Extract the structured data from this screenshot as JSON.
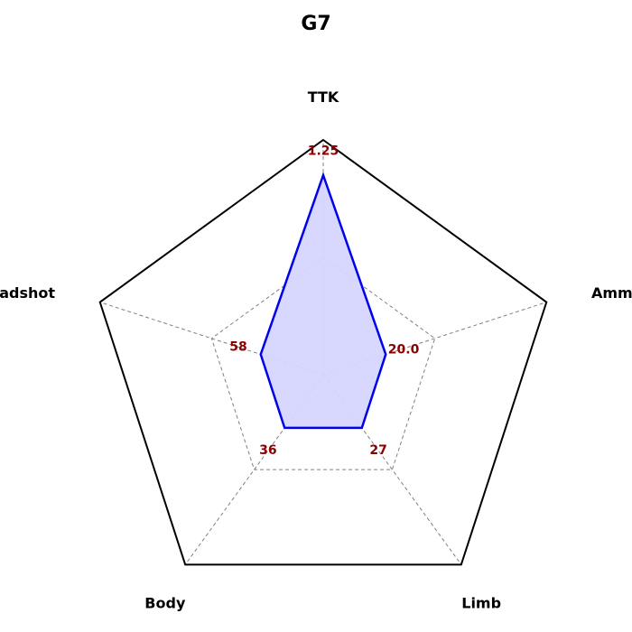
{
  "chart_data": {
    "type": "radar",
    "title": "G7",
    "axes": [
      "TTK",
      "Ammo",
      "Limb",
      "Body",
      "Headshot"
    ],
    "value_labels": [
      "1.25",
      "20.0",
      "27",
      "36",
      "58"
    ],
    "normalized_values": [
      0.85,
      0.28,
      0.28,
      0.28,
      0.28
    ],
    "grid": true,
    "grid_levels": [
      0.5,
      1.0
    ],
    "colors": {
      "series_line": "#0000ee",
      "series_fill": "#d6d6ff",
      "outer_frame": "#000000",
      "grid": "#808080",
      "value_label": "#8b0000"
    }
  }
}
